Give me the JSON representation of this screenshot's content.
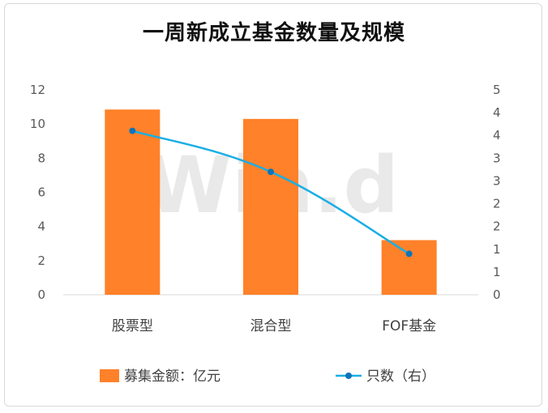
{
  "title": "一周新成立基金数量及规模",
  "watermark": "Win.d",
  "chart_data": {
    "type": "bar",
    "categories": [
      "股票型",
      "混合型",
      "FOF基金"
    ],
    "series": [
      {
        "name": "募集金额：亿元",
        "type": "bar",
        "axis": "left",
        "values": [
          10.85,
          10.3,
          3.2
        ],
        "color": "#ff8129"
      },
      {
        "name": "只数（右）",
        "type": "line",
        "axis": "right",
        "values": [
          4,
          3,
          1
        ],
        "color": "#1aaee5"
      }
    ],
    "y_left": {
      "min": 0,
      "max": 12,
      "ticks": [
        "0",
        "2",
        "4",
        "6",
        "8",
        "10",
        "12"
      ]
    },
    "y_right": {
      "min": 0,
      "max": 5,
      "ticks": [
        "0",
        "1",
        "1",
        "2",
        "2",
        "3",
        "3",
        "4",
        "4",
        "5"
      ]
    },
    "grid": false,
    "legend": "bottom"
  }
}
